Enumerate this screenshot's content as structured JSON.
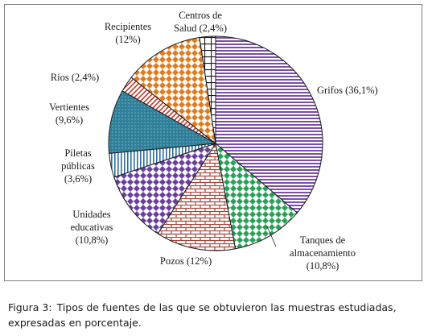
{
  "chart_data": {
    "type": "pie",
    "title": "",
    "slices": [
      {
        "key": "grifos",
        "value": 36.1,
        "label": "Grifos (36,1%)",
        "color": "#7b4fa8",
        "pattern": "hlines"
      },
      {
        "key": "tanques",
        "value": 10.8,
        "label_lines": [
          "Tanques de",
          "almacenamiento",
          "(10,8%)"
        ],
        "color": "#2aa05a",
        "pattern": "diamonds"
      },
      {
        "key": "pozos",
        "value": 12,
        "label": "Pozos (12%)",
        "color": "#a8453a",
        "pattern": "bricks"
      },
      {
        "key": "unidades",
        "value": 10.8,
        "label_lines": [
          "Unidades",
          "educativas",
          "(10,8%)"
        ],
        "color": "#6a3fa0",
        "pattern": "diamonds"
      },
      {
        "key": "piletas",
        "value": 3.6,
        "label_lines": [
          "Piletas",
          "públicas",
          "(3,6%)"
        ],
        "color": "#2f6f9a",
        "pattern": "vlines"
      },
      {
        "key": "vertientes",
        "value": 9.6,
        "label_lines": [
          "Vertientes",
          "(9,6%)"
        ],
        "color": "#2f7f99",
        "pattern": "dots"
      },
      {
        "key": "rios",
        "value": 2.4,
        "label": "Ríos (2,4%)",
        "color": "#c0392b",
        "pattern": "diagonal"
      },
      {
        "key": "recipientes",
        "value": 12,
        "label_lines": [
          "Recipientes",
          "(12%)"
        ],
        "color": "#e07b1e",
        "pattern": "diamonds"
      },
      {
        "key": "centros",
        "value": 2.4,
        "label_lines": [
          "Centros de",
          "Salud (2,4%)"
        ],
        "color": "#1a1a1a",
        "pattern": "grid"
      }
    ],
    "start_angle_deg": 0,
    "direction": "clockwise",
    "legend": "none"
  },
  "caption": {
    "label": "Figura 3:",
    "text": "Tipos de fuentes de las que se obtuvieron las muestras estudiadas, expresadas en porcentaje."
  }
}
